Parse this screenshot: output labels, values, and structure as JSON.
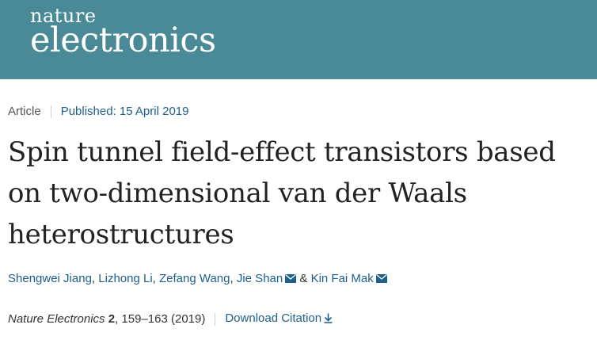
{
  "masthead": {
    "logo_top": "nature",
    "logo_bottom": "electronics",
    "background": "#4a8a97"
  },
  "meta": {
    "article_type": "Article",
    "published": "Published: 15 April 2019"
  },
  "title": "Spin tunnel field-effect transistors based on two-dimensional van der Waals heterostructures",
  "authors": [
    {
      "name": "Shengwei Jiang",
      "sep": ", "
    },
    {
      "name": "Lizhong Li",
      "sep": ", "
    },
    {
      "name": "Zefang Wang",
      "sep": ", "
    },
    {
      "name": "Jie Shan",
      "sep": " & "
    },
    {
      "name": "Kin Fai Mak",
      "sep": ""
    }
  ],
  "citation": {
    "journal": "Nature Electronics",
    "volume": "2",
    "pages": ", 159–163 (2019)",
    "download_label": "Download Citation"
  },
  "icons": {
    "mail": "mail-icon",
    "download": "download-icon"
  },
  "colors": {
    "link": "#1f5f8b",
    "text": "#222222"
  }
}
